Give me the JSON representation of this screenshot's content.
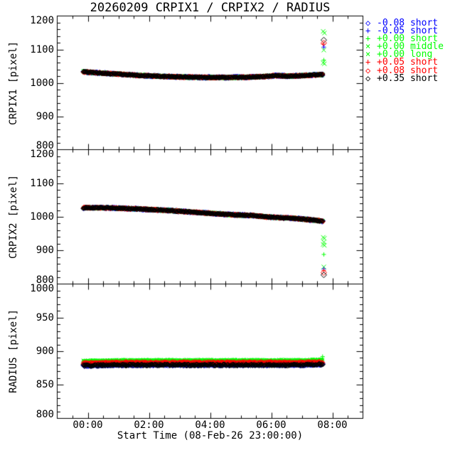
{
  "title": "20260209 CRPIX1 / CRPIX2 / RADIUS",
  "legend": {
    "marker_glyphs": {
      "diamond": "◇",
      "plus": "+",
      "x": "×"
    }
  },
  "chart_data": {
    "type": "scatter",
    "title": "20260209 CRPIX1 / CRPIX2 / RADIUS",
    "x_axis": {
      "label": "Start Time (08-Feb-26 23:00:00)",
      "lim_hours_from_start": [
        0,
        10
      ],
      "major_tick_hours": [
        1,
        3,
        5,
        7,
        9
      ],
      "tick_labels": [
        "00:00",
        "02:00",
        "04:00",
        "06:00",
        "08:00"
      ],
      "minor_tick_step_hours": 0.5
    },
    "series": [
      {
        "name": "-0.08 short",
        "color": "#0000ff",
        "marker": "diamond"
      },
      {
        "name": "-0.05 short",
        "color": "#0000ff",
        "marker": "plus"
      },
      {
        "name": "+0.00 short",
        "color": "#00ff00",
        "marker": "plus"
      },
      {
        "name": "+0.00 middle",
        "color": "#00ff00",
        "marker": "x"
      },
      {
        "name": "+0.00 long",
        "color": "#00ff00",
        "marker": "x"
      },
      {
        "name": "+0.05 short",
        "color": "#ff0000",
        "marker": "plus"
      },
      {
        "name": "+0.08 short",
        "color": "#ff0000",
        "marker": "diamond"
      },
      {
        "name": "+0.35 short",
        "color": "#000000",
        "marker": "diamond"
      }
    ],
    "data_t_range_hours": [
      0.85,
      8.7
    ],
    "sample_step_hours": 0.016,
    "panels": [
      {
        "name": "CRPIX1",
        "ylabel": "CRPIX1 [pixel]",
        "ylim": [
          800,
          1200
        ],
        "major_ticks": [
          800,
          900,
          1000,
          1100,
          1200
        ],
        "minor_tick_step": 20,
        "trend": {
          "t": [
            0.85,
            1.3,
            2.0,
            2.7,
            3.5,
            4.3,
            5.0,
            5.6,
            6.2,
            6.8,
            7.2,
            7.5,
            7.9,
            8.3,
            8.7
          ],
          "v": [
            1033,
            1030,
            1026,
            1022,
            1019,
            1017,
            1016,
            1016,
            1017,
            1019,
            1022,
            1020,
            1021,
            1023,
            1025
          ]
        },
        "series_offsets": [
          0,
          0,
          0,
          0,
          0,
          0,
          0,
          0
        ],
        "series_spread": [
          3,
          3,
          4,
          4,
          4,
          2.5,
          2.5,
          2
        ],
        "outliers": [
          {
            "t": 8.7,
            "v": 1154,
            "series": 4
          },
          {
            "t": 8.74,
            "v": 1149,
            "series": 3
          },
          {
            "t": 8.72,
            "v": 1128,
            "series": 7
          },
          {
            "t": 8.72,
            "v": 1119,
            "series": 6
          },
          {
            "t": 8.7,
            "v": 1116,
            "series": 5
          },
          {
            "t": 8.72,
            "v": 1107,
            "series": 1
          },
          {
            "t": 8.72,
            "v": 1098,
            "series": 4
          },
          {
            "t": 8.72,
            "v": 1068,
            "series": 2
          },
          {
            "t": 8.7,
            "v": 1060,
            "series": 3
          },
          {
            "t": 8.74,
            "v": 1057,
            "series": 4
          }
        ]
      },
      {
        "name": "CRPIX2",
        "ylabel": "CRPIX2 [pixel]",
        "ylim": [
          800,
          1200
        ],
        "major_ticks": [
          800,
          900,
          1000,
          1100,
          1200
        ],
        "minor_tick_step": 20,
        "trend": {
          "t": [
            0.85,
            1.5,
            2.2,
            3.0,
            3.8,
            4.6,
            5.4,
            6.0,
            6.4,
            6.8,
            7.2,
            7.8,
            8.3,
            8.7
          ],
          "v": [
            1027,
            1027,
            1025,
            1022,
            1018,
            1013,
            1008,
            1005,
            1004,
            1000,
            998,
            995,
            991,
            987
          ]
        },
        "series_offsets": [
          0,
          0,
          0,
          0,
          0,
          0,
          0,
          0
        ],
        "series_spread": [
          3,
          3,
          4,
          4,
          4,
          2.5,
          2.5,
          2
        ],
        "outliers": [
          {
            "t": 8.7,
            "v": 939,
            "series": 3
          },
          {
            "t": 8.74,
            "v": 936,
            "series": 4
          },
          {
            "t": 8.72,
            "v": 925,
            "series": 4
          },
          {
            "t": 8.7,
            "v": 918,
            "series": 3
          },
          {
            "t": 8.74,
            "v": 915,
            "series": 4
          },
          {
            "t": 8.72,
            "v": 888,
            "series": 2
          },
          {
            "t": 8.72,
            "v": 851,
            "series": 4
          },
          {
            "t": 8.72,
            "v": 845,
            "series": 1
          },
          {
            "t": 8.72,
            "v": 840,
            "series": 5
          },
          {
            "t": 8.72,
            "v": 834,
            "series": 6
          },
          {
            "t": 8.72,
            "v": 827,
            "series": 7
          }
        ]
      },
      {
        "name": "RADIUS",
        "ylabel": "RADIUS [pixel]",
        "ylim": [
          800,
          1000
        ],
        "major_ticks": [
          800,
          850,
          900,
          950,
          1000
        ],
        "minor_tick_step": 10,
        "trend": {
          "t": [
            0.85,
            2,
            4,
            6,
            8,
            8.7
          ],
          "v": [
            881,
            882,
            882,
            882,
            882,
            883
          ]
        },
        "series_offsets": [
          -2.5,
          -2.5,
          4,
          4,
          4,
          1,
          1,
          -2.5
        ],
        "series_spread": [
          1.5,
          1.5,
          1.8,
          1.8,
          1.8,
          1.5,
          1.5,
          1.5
        ],
        "outliers": [
          {
            "t": 8.68,
            "v": 892,
            "series": 2
          }
        ]
      }
    ]
  }
}
